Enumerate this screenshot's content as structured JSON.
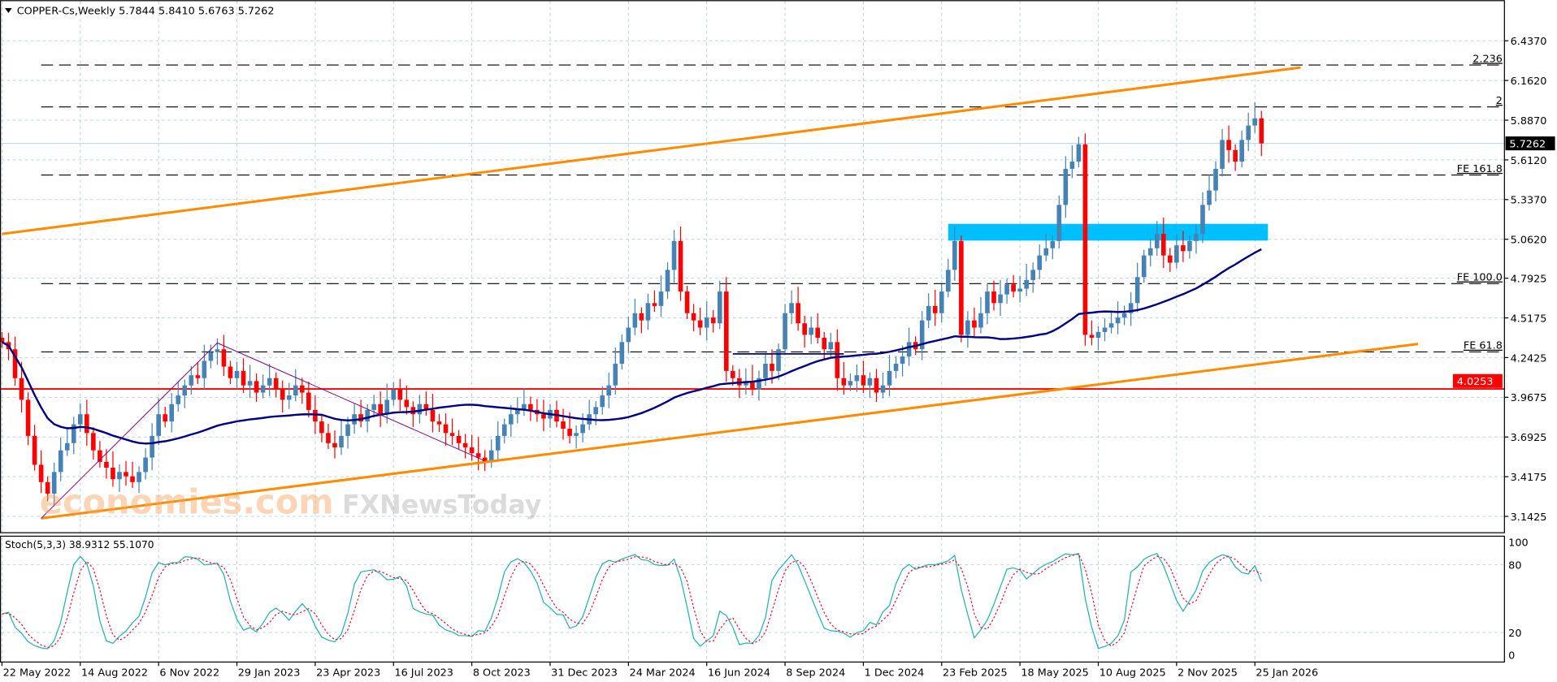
{
  "header": {
    "title": "COPPER-Cs,Weekly  5.7844 5.8410 5.6763 5.7262"
  },
  "stoch_label": "Stoch(5,3,3) 38.9312 55.1070",
  "watermark": {
    "line1": "economies.com",
    "line2": "FXNewsToday"
  },
  "colors": {
    "bull": "#4682B4",
    "bear": "#FF0000",
    "ma": "#000080",
    "channel": "#FF8C00",
    "zone": "#00BFFF",
    "support": "#FF0000",
    "stoch_main": "#20B2AA",
    "stoch_signal": "#DC143C",
    "triangle": "#800080"
  },
  "chart_data": {
    "type": "candlestick",
    "timeframe": "Weekly",
    "symbol": "COPPER-Cs",
    "start_date": "2022-05-22",
    "ylim": [
      3.05,
      6.55
    ],
    "price_ticks": [
      "6.4370",
      "6.1620",
      "5.8870",
      "5.6120",
      "5.3370",
      "5.0620",
      "4.7925",
      "4.5175",
      "4.2425",
      "3.9675",
      "3.6925",
      "3.4175",
      "3.1425"
    ],
    "x_ticks": [
      {
        "label": "22 May 2022",
        "date": "2022-05-22"
      },
      {
        "label": "14 Aug 2022",
        "date": "2022-08-14"
      },
      {
        "label": "6 Nov 2022",
        "date": "2022-11-06"
      },
      {
        "label": "29 Jan 2023",
        "date": "2023-01-29"
      },
      {
        "label": "23 Apr 2023",
        "date": "2023-04-23"
      },
      {
        "label": "16 Jul 2023",
        "date": "2023-07-16"
      },
      {
        "label": "8 Oct 2023",
        "date": "2023-10-08"
      },
      {
        "label": "31 Dec 2023",
        "date": "2023-12-31"
      },
      {
        "label": "24 Mar 2024",
        "date": "2024-03-24"
      },
      {
        "label": "16 Jun 2024",
        "date": "2024-06-16"
      },
      {
        "label": "8 Sep 2024",
        "date": "2024-09-08"
      },
      {
        "label": "1 Dec 2024",
        "date": "2024-12-01"
      },
      {
        "label": "23 Feb 2025",
        "date": "2025-02-23"
      },
      {
        "label": "18 May 2025",
        "date": "2025-05-18"
      },
      {
        "label": "10 Aug 2025",
        "date": "2025-08-10"
      },
      {
        "label": "2 Nov 2025",
        "date": "2025-11-02"
      },
      {
        "label": "25 Jan 2026",
        "date": "2026-01-25"
      }
    ],
    "closes": [
      4.35,
      4.3,
      4.1,
      3.95,
      3.7,
      3.5,
      3.38,
      3.3,
      3.45,
      3.6,
      3.65,
      3.78,
      3.85,
      3.72,
      3.6,
      3.52,
      3.48,
      3.4,
      3.45,
      3.42,
      3.38,
      3.45,
      3.55,
      3.7,
      3.85,
      3.8,
      3.92,
      3.98,
      4.05,
      4.12,
      4.1,
      4.22,
      4.28,
      4.3,
      4.18,
      4.1,
      4.15,
      4.05,
      4.08,
      4.0,
      4.05,
      4.1,
      4.02,
      3.95,
      3.98,
      4.05,
      4.0,
      3.88,
      3.8,
      3.72,
      3.65,
      3.62,
      3.7,
      3.78,
      3.85,
      3.8,
      3.88,
      3.92,
      3.85,
      3.95,
      4.02,
      3.95,
      3.9,
      3.85,
      3.92,
      3.88,
      3.8,
      3.78,
      3.72,
      3.7,
      3.65,
      3.62,
      3.58,
      3.55,
      3.52,
      3.6,
      3.7,
      3.78,
      3.85,
      3.88,
      3.92,
      3.88,
      3.85,
      3.82,
      3.88,
      3.8,
      3.75,
      3.7,
      3.72,
      3.78,
      3.85,
      3.9,
      3.98,
      4.05,
      4.2,
      4.35,
      4.45,
      4.55,
      4.5,
      4.62,
      4.6,
      4.7,
      4.85,
      5.05,
      4.7,
      4.55,
      4.5,
      4.45,
      4.52,
      4.48,
      4.7,
      4.15,
      4.1,
      4.05,
      4.08,
      4.02,
      4.1,
      4.2,
      4.15,
      4.3,
      4.55,
      4.62,
      4.48,
      4.4,
      4.45,
      4.38,
      4.3,
      4.35,
      4.1,
      4.05,
      4.08,
      4.12,
      4.05,
      4.1,
      4.0,
      4.05,
      4.15,
      4.2,
      4.25,
      4.35,
      4.3,
      4.5,
      4.6,
      4.55,
      4.7,
      4.85,
      5.05,
      4.4,
      4.5,
      4.45,
      4.55,
      4.7,
      4.62,
      4.68,
      4.75,
      4.7,
      4.72,
      4.78,
      4.85,
      4.95,
      5.0,
      5.05,
      5.3,
      5.55,
      5.6,
      5.72,
      4.4,
      4.38,
      4.42,
      4.45,
      4.48,
      4.52,
      4.55,
      4.62,
      4.8,
      4.95,
      5.0,
      5.1,
      4.95,
      4.9,
      5.02,
      4.98,
      5.05,
      5.1,
      5.3,
      5.4,
      5.55,
      5.75,
      5.68,
      5.6,
      5.75,
      5.85,
      5.9,
      5.7262
    ],
    "moving_average_period": 50,
    "current_price": {
      "label": "5.7262",
      "value": 5.7262
    },
    "support_line": {
      "label": "4.0253",
      "value": 4.0253
    },
    "fibo_levels": [
      {
        "label": "2.236",
        "value": 6.269
      },
      {
        "label": "2",
        "value": 5.979
      },
      {
        "label": "FE 161.8",
        "value": 5.507
      },
      {
        "label": "FE 100.0",
        "value": 4.755
      },
      {
        "label": "FE 61.8",
        "value": 4.282
      }
    ],
    "fibo_start_date": "2022-07-03",
    "zone": {
      "from": "2025-03-02",
      "to": "2026-02-08",
      "low": 5.053,
      "high": 5.169
    },
    "channel_upper": [
      {
        "date": "2022-05-22",
        "price": 5.099
      },
      {
        "date": "2026-03-15",
        "price": 6.252
      }
    ],
    "channel_lower": [
      {
        "date": "2022-07-03",
        "price": 3.129
      },
      {
        "date": "2026-07-19",
        "price": 4.337
      }
    ],
    "triangle_lines": [
      {
        "date": "2022-07-03",
        "price": 3.129
      },
      {
        "date": "2023-01-08",
        "price": 4.344
      },
      {
        "date": "2023-10-22",
        "price": 3.527
      }
    ],
    "range_line": [
      {
        "date": "2024-07-14",
        "price": 4.268
      },
      {
        "date": "2024-11-10",
        "price": 4.268
      }
    ],
    "stochastic": {
      "k": 5,
      "d": 3,
      "slowing": 3,
      "levels": [
        "100",
        "80",
        "20",
        "0"
      ]
    }
  }
}
